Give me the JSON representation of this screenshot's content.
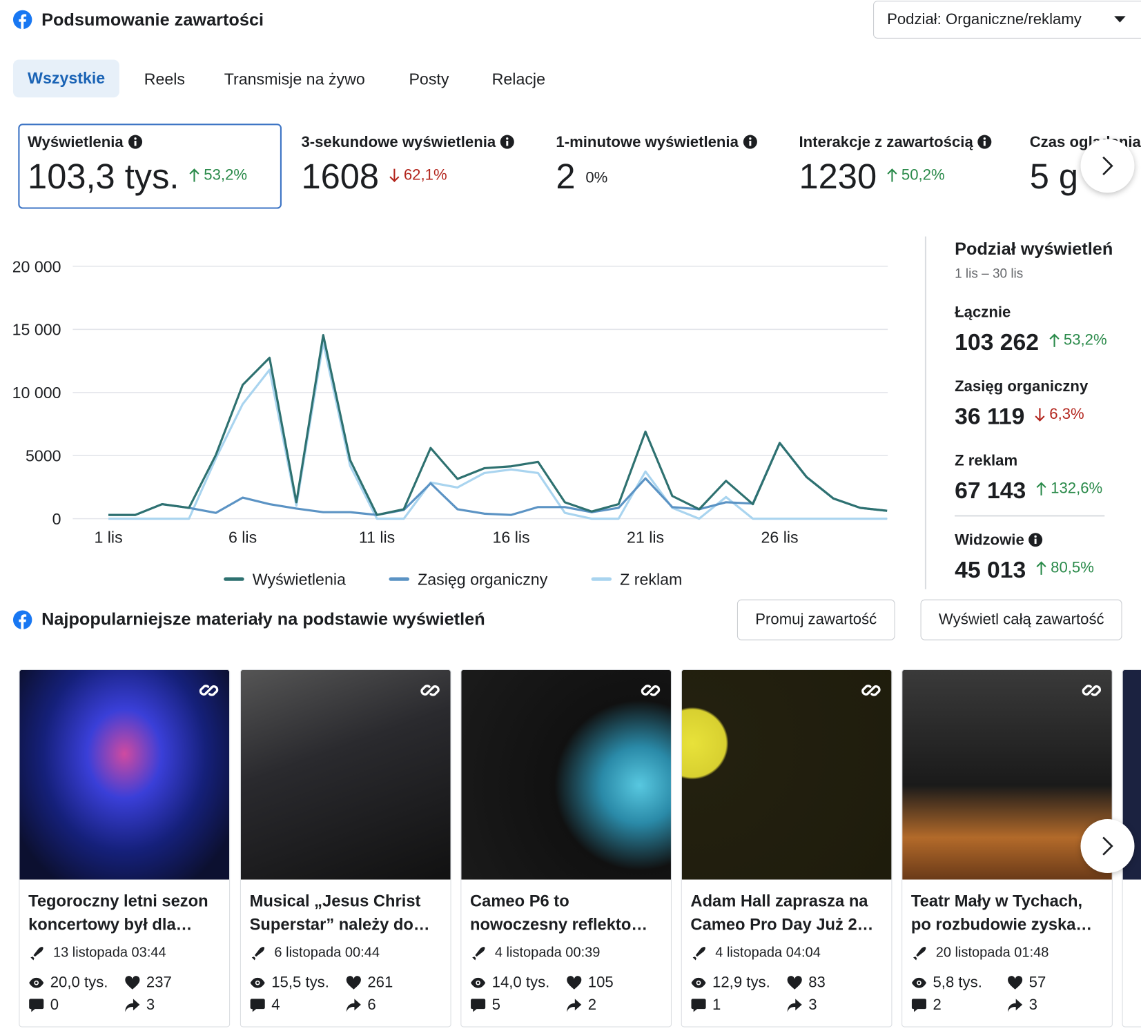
{
  "header": {
    "title": "Podsumowanie zawartości",
    "breakdown": "Podział: Organiczne/reklamy"
  },
  "tabs": [
    "Wszystkie",
    "Reels",
    "Transmisje na żywo",
    "Posty",
    "Relacje"
  ],
  "metrics": [
    {
      "label": "Wyświetlenia",
      "value": "103,3 tys.",
      "change": "53,2%",
      "trend": "up"
    },
    {
      "label": "3-sekundowe wyświetlenia",
      "value": "1608",
      "change": "62,1%",
      "trend": "down"
    },
    {
      "label": "1-minutowe wyświetlenia",
      "value": "2",
      "change": "0%",
      "trend": "flat"
    },
    {
      "label": "Interakcje z zawartością",
      "value": "1230",
      "change": "50,2%",
      "trend": "up"
    },
    {
      "label": "Czas oglądania",
      "value": "5 g"
    }
  ],
  "chart_data": {
    "type": "line",
    "categories": [
      "1 lis",
      null,
      null,
      null,
      null,
      "6 lis",
      null,
      null,
      null,
      null,
      "11 lis",
      null,
      null,
      null,
      null,
      "16 lis",
      null,
      null,
      null,
      null,
      "21 lis",
      null,
      null,
      null,
      null,
      "26 lis",
      null,
      null,
      null,
      null
    ],
    "series": [
      {
        "name": "Wyświetlenia",
        "color": "#2e7170",
        "values": [
          300,
          300,
          1150,
          860,
          5050,
          10600,
          12750,
          1300,
          14550,
          4650,
          300,
          750,
          5600,
          3150,
          4000,
          4150,
          4500,
          1300,
          570,
          1150,
          6900,
          1800,
          750,
          3000,
          1150,
          6000,
          3300,
          1600,
          860,
          630
        ]
      },
      {
        "name": "Zasięg organiczny",
        "color": "#5b93c4",
        "values": [
          300,
          300,
          1150,
          860,
          460,
          1670,
          1150,
          800,
          520,
          520,
          300,
          690,
          2800,
          750,
          400,
          300,
          920,
          920,
          520,
          860,
          3200,
          920,
          750,
          1300,
          1200,
          6000,
          3300,
          1600,
          860,
          630
        ]
      },
      {
        "name": "Z reklam",
        "color": "#a9d4ef",
        "values": [
          0,
          0,
          0,
          0,
          4770,
          9080,
          11800,
          1030,
          13960,
          4200,
          0,
          0,
          2870,
          2470,
          3620,
          3900,
          3620,
          460,
          0,
          0,
          3740,
          860,
          0,
          1720,
          0,
          0,
          0,
          0,
          0,
          0
        ]
      }
    ],
    "ylim": [
      0,
      20000
    ],
    "yticks": [
      0,
      5000,
      {
        "value": 10000,
        "label": "10 000"
      },
      {
        "value": 15000,
        "label": "15 000"
      },
      {
        "value": 20000,
        "label": "20 000"
      }
    ],
    "grid": true
  },
  "breakdown": {
    "title": "Podział wyświetleń",
    "period": "1 lis – 30 lis",
    "items": [
      {
        "label": "Łącznie",
        "value": "103 262",
        "change": "53,2%",
        "trend": "up"
      },
      {
        "label": "Zasięg organiczny",
        "value": "36 119",
        "change": "6,3%",
        "trend": "down"
      },
      {
        "label": "Z reklam",
        "value": "67 143",
        "change": "132,6%",
        "trend": "up"
      },
      {
        "label": "Widzowie",
        "value": "45 013",
        "change": "80,5%",
        "trend": "up"
      }
    ]
  },
  "top": {
    "title": "Najpopularniejsze materiały na podstawie wyświetleń",
    "buttons": [
      "Promuj zawartość",
      "Wyświetl całą zawartość"
    ],
    "posts": [
      {
        "title": "Tegoroczny letni sezon koncertowy był dla…",
        "date": "13 listopada 03:44",
        "views": "20,0 tys.",
        "likes": 237,
        "comments": 0,
        "shares": 3
      },
      {
        "title": "Musical „Jesus Christ Superstar” należy do…",
        "date": "6 listopada 00:44",
        "views": "15,5 tys.",
        "likes": 261,
        "comments": 4,
        "shares": 6
      },
      {
        "title": "Cameo P6 to nowoczesny reflekto…",
        "date": "4 listopada 00:39",
        "views": "14,0 tys.",
        "likes": 105,
        "comments": 5,
        "shares": 2
      },
      {
        "title": "Adam Hall zaprasza na Cameo Pro Day Już 2…",
        "date": "4 listopada 04:04",
        "views": "12,9 tys.",
        "likes": 83,
        "comments": 1,
        "shares": 3
      },
      {
        "title": "Teatr Mały w Tychach, po rozbudowie zyska…",
        "date": "20 listopada 01:48",
        "views": "5,8 tys.",
        "likes": 57,
        "comments": 2,
        "shares": 3
      }
    ]
  }
}
